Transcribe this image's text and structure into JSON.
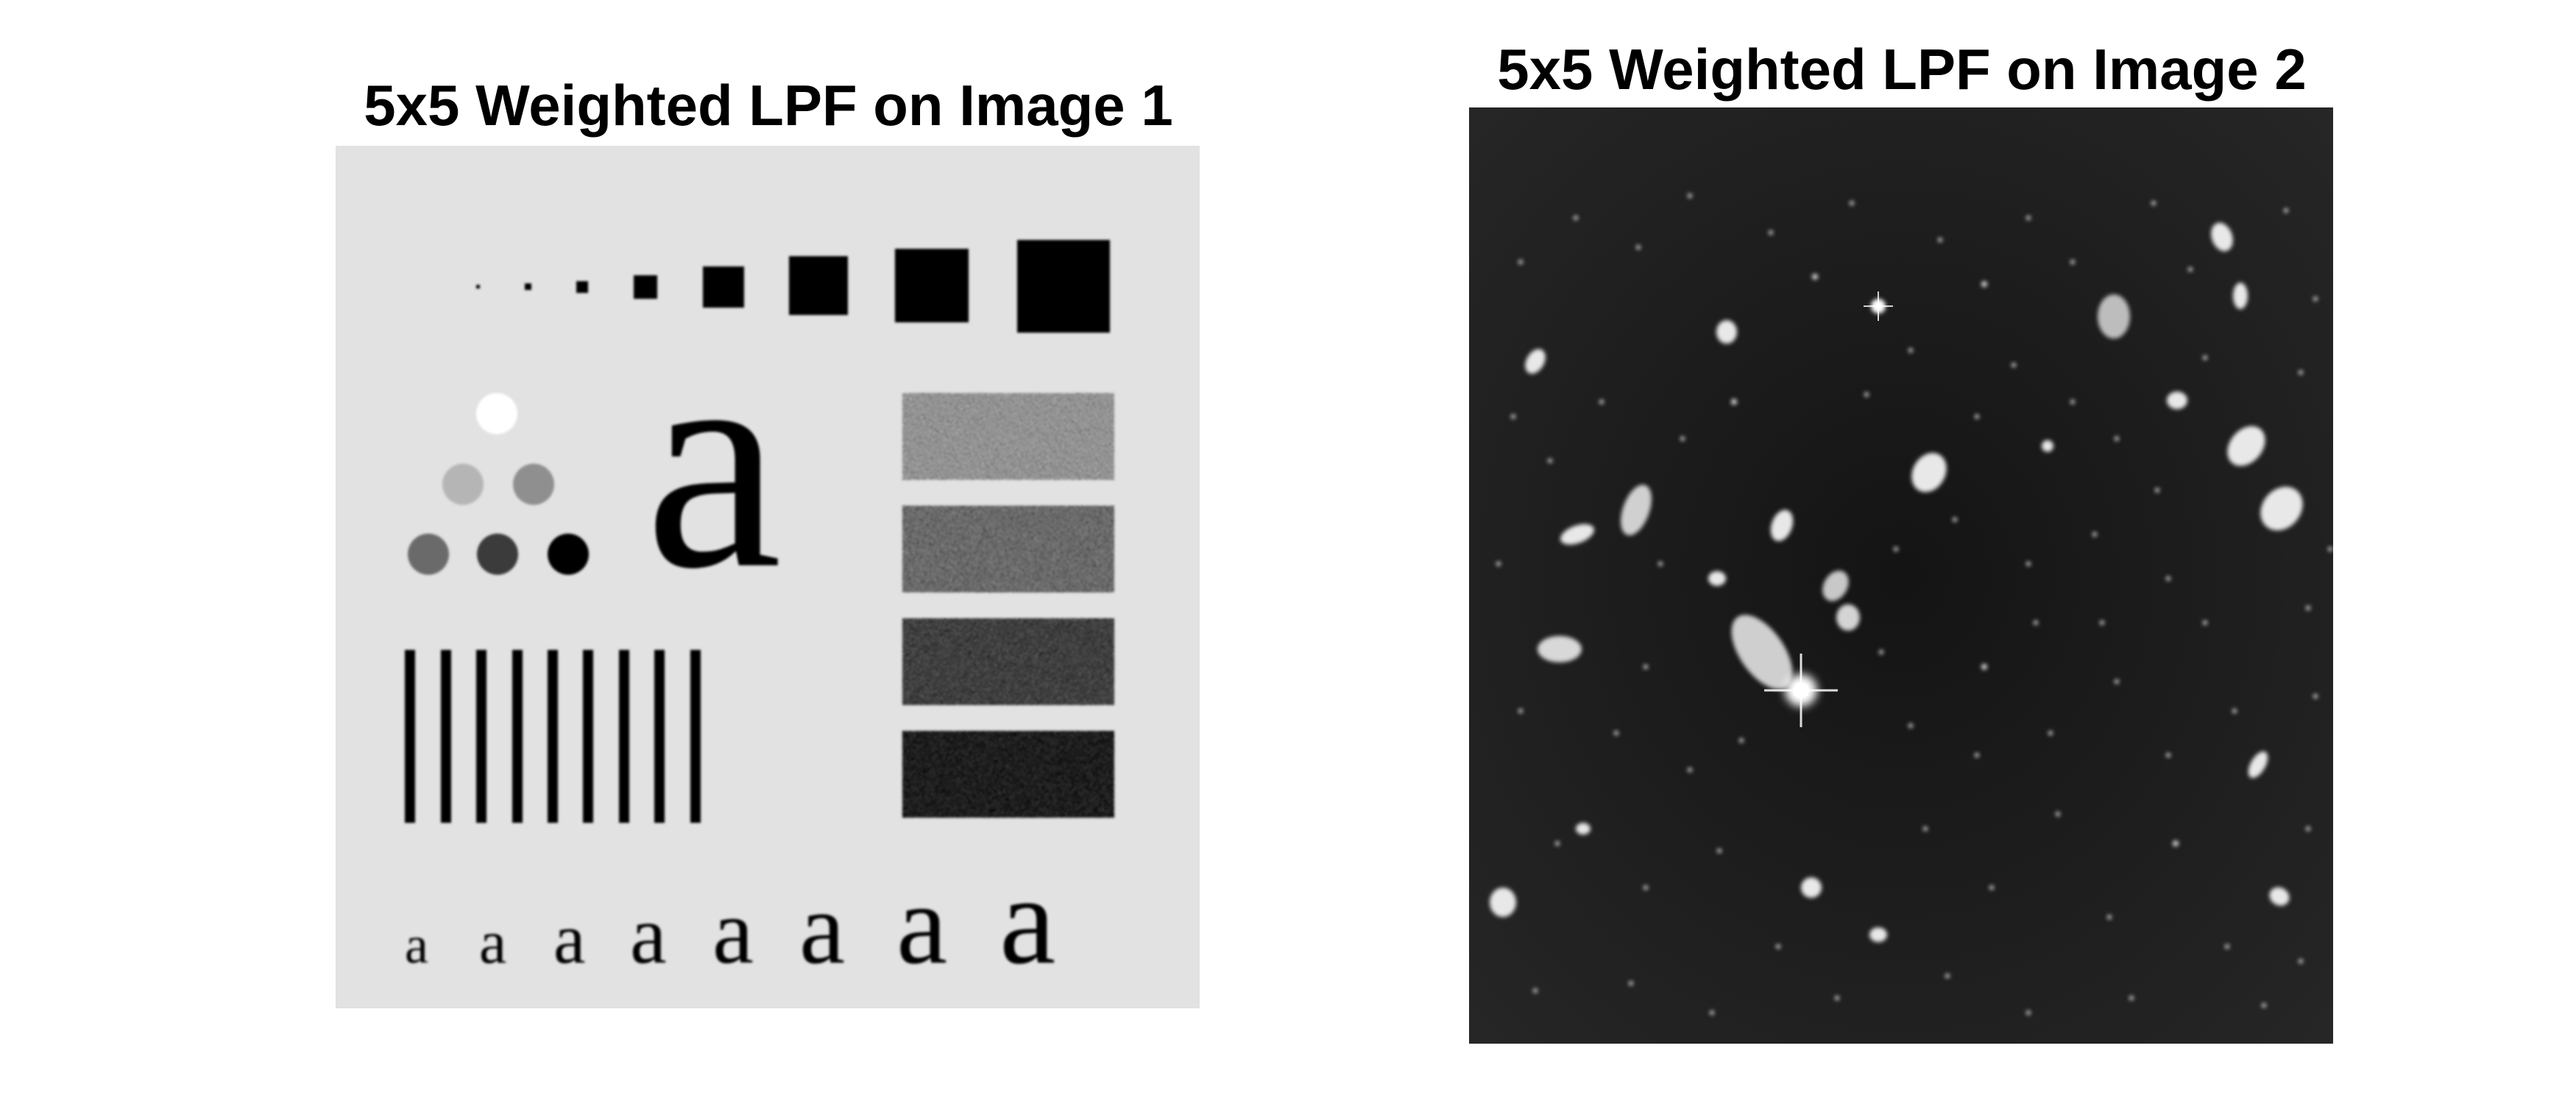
{
  "panels": [
    {
      "title": "5x5 Weighted LPF on Image 1",
      "background": "#e2e2e2"
    },
    {
      "title": "5x5 Weighted LPF on Image 2",
      "background": "#202020"
    }
  ],
  "test_pattern": {
    "big_letter": "a",
    "letter_row": [
      "a",
      "a",
      "a",
      "a",
      "a",
      "a",
      "a",
      "a"
    ]
  }
}
